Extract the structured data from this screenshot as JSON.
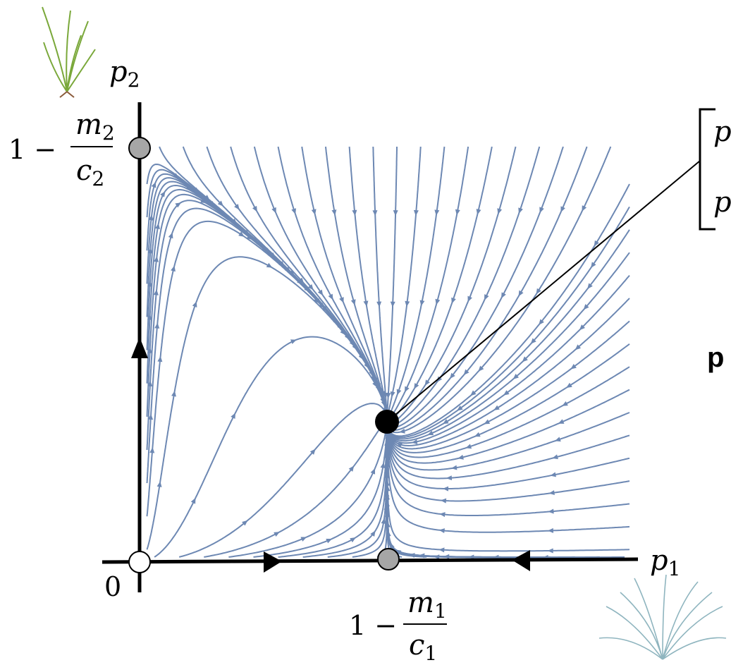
{
  "axes": {
    "y_label": {
      "base": "p",
      "sub": "2"
    },
    "x_label": {
      "base": "p",
      "sub": "1"
    },
    "origin": "0"
  },
  "y_point_label": {
    "lead": "1 −",
    "num": {
      "base": "m",
      "sub": "2"
    },
    "den": {
      "base": "c",
      "sub": "2"
    }
  },
  "x_point_label": {
    "lead": "1 −",
    "num": {
      "base": "m",
      "sub": "1"
    },
    "den": {
      "base": "c",
      "sub": "1"
    }
  },
  "callout": {
    "row1": "p",
    "row2": "p"
  },
  "side_label": "p"
}
